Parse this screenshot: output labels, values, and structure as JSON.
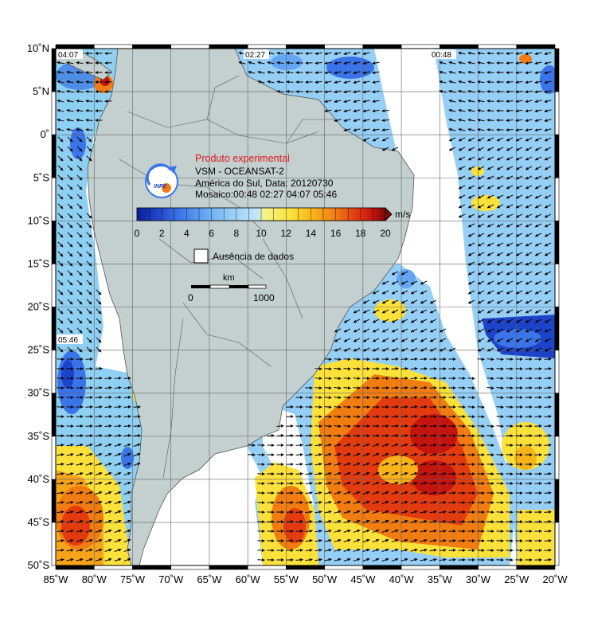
{
  "overlay": {
    "heading": "Produto experimental",
    "heading_color": "#e0161a",
    "line1": "VSM - OCEANSAT-2",
    "line2": "América do Sul, Data: 20120730",
    "line3": "Mosaico:00:48 02:27 04:07 05:46",
    "logo_text": "INPE",
    "logo_icon": "inpe-logo-icon"
  },
  "colorbar": {
    "unit": "m/s",
    "ticks": [
      "0",
      "2",
      "4",
      "6",
      "8",
      "10",
      "12",
      "14",
      "16",
      "18",
      "20"
    ],
    "range": [
      0,
      20
    ],
    "colors": [
      "#0a1f96",
      "#1f43c8",
      "#3b74e8",
      "#64a6f2",
      "#96cff6",
      "#c4e8f8",
      "#f4f58a",
      "#fbe13a",
      "#f8b21a",
      "#f07c12",
      "#e33b10",
      "#c4140e",
      "#7a0a0a"
    ]
  },
  "no_data_legend": {
    "label": "Ausência de dados"
  },
  "scale_bar": {
    "unit_label": "km",
    "start_label": "0",
    "end_label": "1000"
  },
  "pass_times": [
    "04:07",
    "02:27",
    "00:48",
    "05:46"
  ],
  "axes": {
    "lat_labels": [
      "10˚N",
      "5˚N",
      "0˚",
      "5˚S",
      "10˚S",
      "15˚S",
      "20˚S",
      "25˚S",
      "30˚S",
      "35˚S",
      "40˚S",
      "45˚S",
      "50˚S"
    ],
    "lon_labels": [
      "85˚W",
      "80˚W",
      "75˚W",
      "70˚W",
      "65˚W",
      "60˚W",
      "55˚W",
      "50˚W",
      "45˚W",
      "40˚W",
      "35˚W",
      "30˚W",
      "25˚W",
      "20˚W"
    ],
    "lat_range": [
      10,
      -50
    ],
    "lon_range": [
      -85,
      -20
    ]
  },
  "colors": {
    "land": "#c3d0cf",
    "sea": "#ffffff",
    "grid": "#606060",
    "arrow": "#000000"
  }
}
